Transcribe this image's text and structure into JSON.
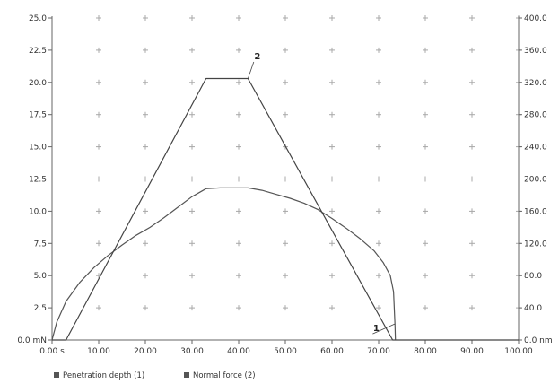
{
  "chart_data": {
    "type": "line",
    "x_axis": {
      "min": 0,
      "max": 100,
      "ticks": [
        0,
        10,
        20,
        30,
        40,
        50,
        60,
        70,
        80,
        90,
        100
      ],
      "tick_labels": [
        "0.00 s",
        "10.00",
        "20.00",
        "30.00",
        "40.00",
        "50.00",
        "60.00",
        "70.00",
        "80.00",
        "90.00",
        "100.00"
      ]
    },
    "y_left": {
      "min": 0,
      "max": 25,
      "ticks": [
        0,
        2.5,
        5,
        7.5,
        10,
        12.5,
        15,
        17.5,
        20,
        22.5,
        25
      ],
      "tick_labels": [
        "0.0 mN",
        "2.5",
        "5.0",
        "7.5",
        "10.0",
        "12.5",
        "15.0",
        "17.5",
        "20.0",
        "22.5",
        "25.0"
      ]
    },
    "y_right": {
      "min": 0,
      "max": 400,
      "ticks": [
        0,
        40,
        80,
        120,
        160,
        200,
        240,
        280,
        320,
        360,
        400
      ],
      "tick_labels": [
        "0.0 nm",
        "40.0",
        "80.0",
        "120.0",
        "160.0",
        "200.0",
        "240.0",
        "280.0",
        "320.0",
        "360.0",
        "400.0"
      ]
    },
    "grid": "cross-markers",
    "legend_position": "bottom-left",
    "series": [
      {
        "name": "Penetration depth (1)",
        "id": "1",
        "axis": "right",
        "color": "#555555",
        "points": [
          [
            0,
            0
          ],
          [
            1,
            22
          ],
          [
            3,
            48
          ],
          [
            6,
            72
          ],
          [
            9,
            90
          ],
          [
            12,
            105
          ],
          [
            15,
            118
          ],
          [
            18,
            130
          ],
          [
            21,
            140
          ],
          [
            24,
            152
          ],
          [
            27,
            165
          ],
          [
            30,
            178
          ],
          [
            33,
            188
          ],
          [
            36,
            189
          ],
          [
            39,
            189
          ],
          [
            42,
            189
          ],
          [
            45,
            186
          ],
          [
            48,
            181
          ],
          [
            51,
            176
          ],
          [
            54,
            170
          ],
          [
            57,
            162
          ],
          [
            60,
            151
          ],
          [
            63,
            139
          ],
          [
            66,
            126
          ],
          [
            69,
            111
          ],
          [
            71,
            96
          ],
          [
            72.5,
            80
          ],
          [
            73.2,
            60
          ],
          [
            73.5,
            20
          ],
          [
            73.6,
            0
          ]
        ]
      },
      {
        "name": "Normal force (2)",
        "id": "2",
        "axis": "left",
        "color": "#444444",
        "points": [
          [
            0,
            0
          ],
          [
            3,
            0
          ],
          [
            33,
            20.3
          ],
          [
            42,
            20.3
          ],
          [
            73,
            0
          ],
          [
            100,
            0
          ]
        ]
      }
    ],
    "annotations": [
      {
        "text": "2",
        "series_id": "2",
        "at": [
          44,
          21.8
        ]
      },
      {
        "text": "1",
        "series_id": "1",
        "at": [
          69.5,
          11
        ]
      }
    ]
  },
  "legend": {
    "items": [
      {
        "label": "Penetration depth (1)",
        "color": "#555555"
      },
      {
        "label": "Normal force (2)",
        "color": "#555555"
      }
    ]
  }
}
